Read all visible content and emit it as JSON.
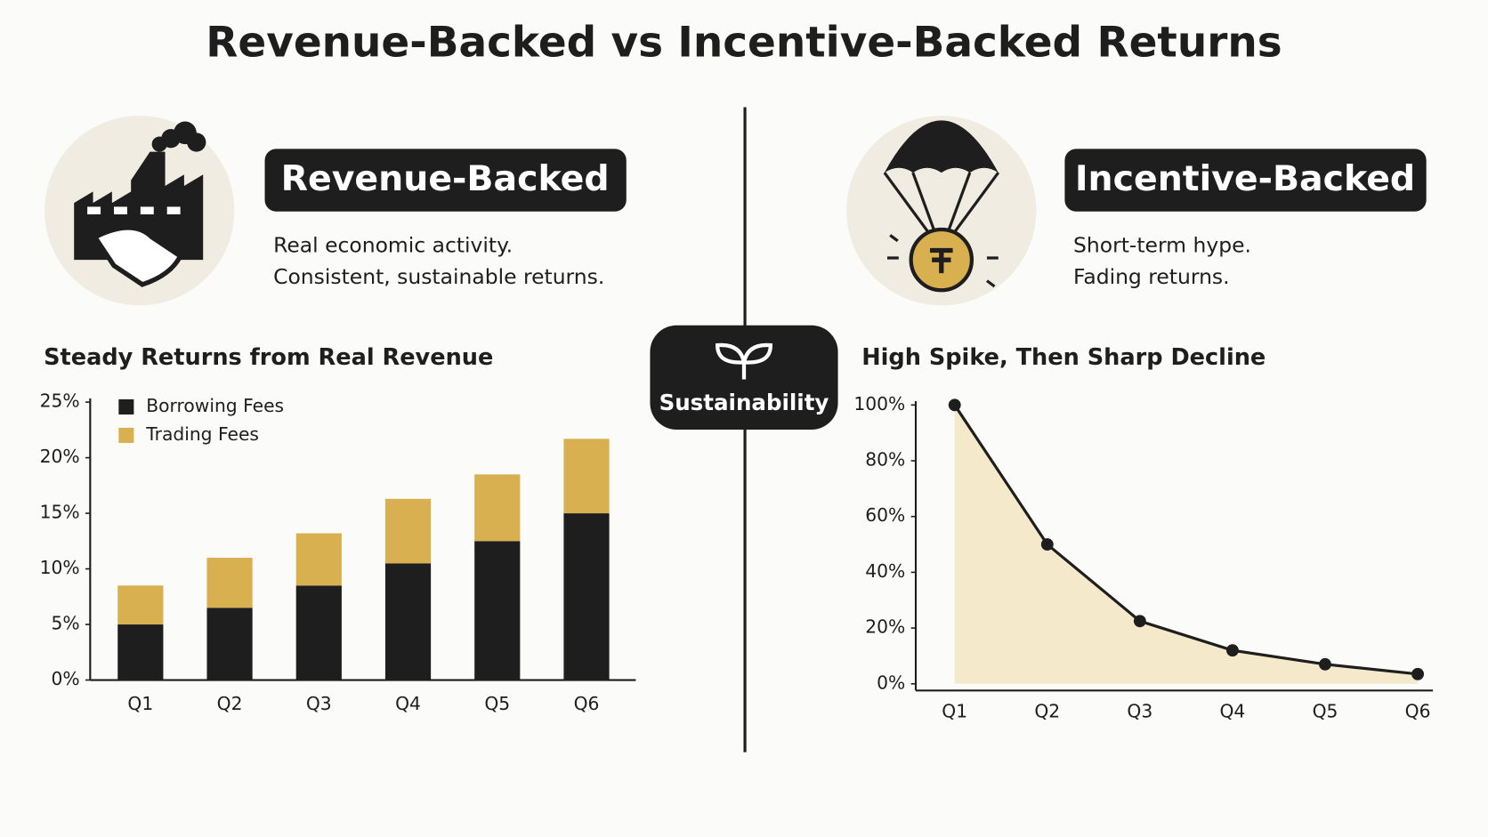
{
  "title": "Revenue-Backed vs Incentive-Backed Returns",
  "left": {
    "badge": "Revenue-Backed",
    "lines": [
      "Real economic activity.",
      "Consistent, sustainable returns."
    ]
  },
  "right": {
    "badge": "Incentive-Backed",
    "lines": [
      "Short-term hype.",
      "Fading returns."
    ]
  },
  "center_label": "Sustainability",
  "chart_data": [
    {
      "type": "bar",
      "stacked": true,
      "title": "Steady Returns from Real Revenue",
      "categories": [
        "Q1",
        "Q2",
        "Q3",
        "Q4",
        "Q5",
        "Q6"
      ],
      "series": [
        {
          "name": "Borrowing Fees",
          "color": "#1e1e1e",
          "values": [
            5,
            6.5,
            8.5,
            10.5,
            12.5,
            15
          ]
        },
        {
          "name": "Trading Fees",
          "color": "#d8b04f",
          "values": [
            3.5,
            4.5,
            4.7,
            5.8,
            6,
            6.7
          ]
        }
      ],
      "ylim": [
        0,
        25
      ],
      "yticks": [
        {
          "value": 0,
          "label": "0%"
        },
        {
          "value": 5,
          "label": "5%"
        },
        {
          "value": 10,
          "label": "10%"
        },
        {
          "value": 15,
          "label": "15%"
        },
        {
          "value": 20,
          "label": "20%"
        },
        {
          "value": 25,
          "label": "25%"
        }
      ],
      "legend": "upper left",
      "grid": false
    },
    {
      "type": "line",
      "title": "High Spike, Then Sharp Decline",
      "categories": [
        "Q1",
        "Q2",
        "Q3",
        "Q4",
        "Q5",
        "Q6"
      ],
      "values": [
        100,
        50,
        22.5,
        12,
        7,
        3.5
      ],
      "color": "#1e1e1e",
      "area_color": "#f5e9cc",
      "ylim": [
        0,
        100
      ],
      "yticks": [
        {
          "value": 0,
          "label": "0%"
        },
        {
          "value": 20,
          "label": "20%"
        },
        {
          "value": 40,
          "label": "40%"
        },
        {
          "value": 60,
          "label": "60%"
        },
        {
          "value": 80,
          "label": "80%"
        },
        {
          "value": 100,
          "label": "100%"
        }
      ],
      "grid": false
    }
  ]
}
